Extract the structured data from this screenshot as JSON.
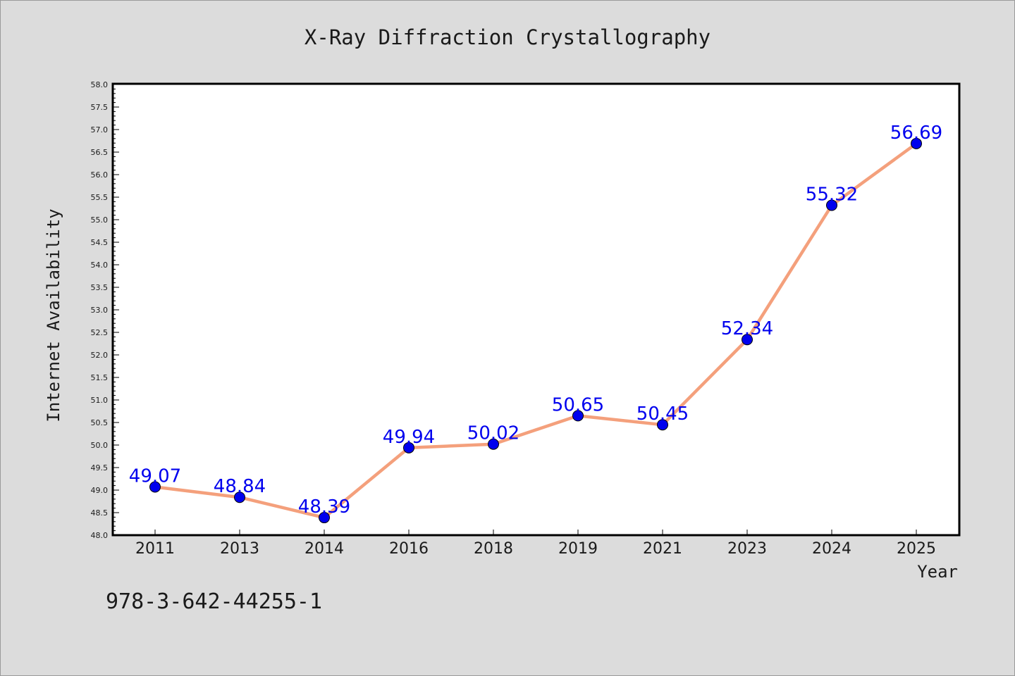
{
  "chart_data": {
    "type": "line",
    "title": "X-Ray Diffraction Crystallography",
    "xlabel": "Year",
    "ylabel": "Internet Availability",
    "categories": [
      "2011",
      "2013",
      "2014",
      "2016",
      "2018",
      "2019",
      "2021",
      "2023",
      "2024",
      "2025"
    ],
    "series": [
      {
        "values": [
          49.07,
          48.84,
          48.39,
          49.94,
          50.02,
          50.65,
          50.45,
          52.34,
          55.32,
          56.69
        ],
        "labels": [
          "49.07",
          "48.84",
          "48.39",
          "49.94",
          "50.02",
          "50.65",
          "50.45",
          "52.34",
          "55.32",
          "56.69"
        ]
      }
    ],
    "ylim": [
      48.0,
      58.0
    ],
    "yticks": [
      "48.0",
      "48.5",
      "49.0",
      "49.5",
      "50.0",
      "50.5",
      "51.0",
      "51.5",
      "52.0",
      "52.5",
      "53.0",
      "53.5",
      "54.0",
      "54.5",
      "55.0",
      "55.5",
      "56.0",
      "56.5",
      "57.0",
      "57.5",
      "58.0"
    ],
    "grid": false,
    "colors": {
      "line": "#f4a07c",
      "marker": "#0000ee",
      "label": "#0000ee",
      "plot_bg": "#ffffff",
      "page_bg": "#dcdcdc"
    }
  },
  "annotation": "978-3-642-44255-1"
}
